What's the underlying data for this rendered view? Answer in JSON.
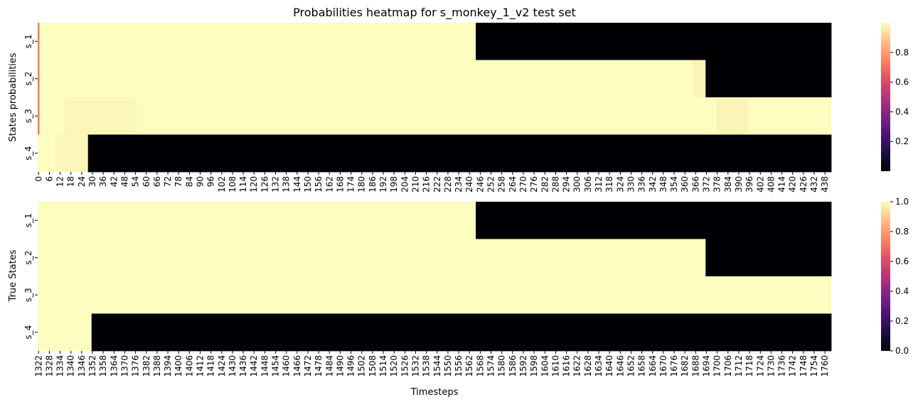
{
  "chart_data": [
    {
      "type": "heatmap",
      "title": "Probabilities heatmap for s_monkey_1_v2 test set",
      "xlabel": "",
      "ylabel": "States probabilities",
      "rows": [
        "s_1",
        "s_2",
        "s_3",
        "s_4"
      ],
      "xticks": [
        "0",
        "6",
        "12",
        "18",
        "24",
        "30",
        "36",
        "42",
        "48",
        "54",
        "60",
        "66",
        "72",
        "78",
        "84",
        "90",
        "96",
        "102",
        "108",
        "114",
        "120",
        "126",
        "132",
        "138",
        "144",
        "150",
        "156",
        "162",
        "168",
        "174",
        "180",
        "186",
        "192",
        "198",
        "204",
        "210",
        "216",
        "222",
        "228",
        "234",
        "240",
        "246",
        "252",
        "258",
        "264",
        "270",
        "276",
        "282",
        "288",
        "294",
        "300",
        "306",
        "312",
        "318",
        "324",
        "330",
        "336",
        "342",
        "348",
        "354",
        "360",
        "366",
        "372",
        "378",
        "384",
        "390",
        "396",
        "402",
        "408",
        "414",
        "420",
        "426",
        "432",
        "438"
      ],
      "n_timesteps": 442,
      "colormap": "magma",
      "colorbar": {
        "range": [
          0,
          1
        ],
        "ticks": [
          "0.2",
          "0.4",
          "0.6",
          "0.8"
        ]
      },
      "segments": [
        [
          {
            "from": 0,
            "to": 1,
            "value": 0.72
          },
          {
            "from": 1,
            "to": 244,
            "value": 1
          },
          {
            "from": 244,
            "to": 442,
            "value": 0
          }
        ],
        [
          {
            "from": 0,
            "to": 1,
            "value": 0.72
          },
          {
            "from": 1,
            "to": 365,
            "value": 1
          },
          {
            "from": 365,
            "to": 372,
            "value": 0.98
          },
          {
            "from": 372,
            "to": 442,
            "value": 0
          }
        ],
        [
          {
            "from": 0,
            "to": 1,
            "value": 0.72
          },
          {
            "from": 1,
            "to": 15,
            "value": 1
          },
          {
            "from": 15,
            "to": 55,
            "value": 0.985
          },
          {
            "from": 55,
            "to": 378,
            "value": 1
          },
          {
            "from": 378,
            "to": 396,
            "value": 0.98
          },
          {
            "from": 396,
            "to": 442,
            "value": 1
          }
        ],
        [
          {
            "from": 0,
            "to": 10,
            "value": 1
          },
          {
            "from": 10,
            "to": 28,
            "value": 0.985
          },
          {
            "from": 28,
            "to": 442,
            "value": 0
          }
        ]
      ]
    },
    {
      "type": "heatmap",
      "title": "",
      "xlabel": "Timesteps",
      "ylabel": "True States",
      "rows": [
        "s_1",
        "s_2",
        "s_3",
        "s_4"
      ],
      "xticks": [
        "1322",
        "1328",
        "1334",
        "1340",
        "1346",
        "1352",
        "1358",
        "1364",
        "1370",
        "1376",
        "1382",
        "1388",
        "1394",
        "1400",
        "1406",
        "1412",
        "1418",
        "1424",
        "1430",
        "1436",
        "1442",
        "1448",
        "1454",
        "1460",
        "1466",
        "1472",
        "1478",
        "1484",
        "1490",
        "1496",
        "1502",
        "1508",
        "1514",
        "1520",
        "1526",
        "1532",
        "1538",
        "1544",
        "1550",
        "1556",
        "1562",
        "1568",
        "1574",
        "1580",
        "1586",
        "1592",
        "1598",
        "1604",
        "1610",
        "1616",
        "1622",
        "1628",
        "1634",
        "1640",
        "1646",
        "1652",
        "1658",
        "1664",
        "1670",
        "1676",
        "1682",
        "1688",
        "1694",
        "1700",
        "1706",
        "1712",
        "1718",
        "1724",
        "1730",
        "1736",
        "1742",
        "1748",
        "1754",
        "1760"
      ],
      "n_timesteps": 442,
      "colormap": "magma",
      "colorbar": {
        "range": [
          0,
          1
        ],
        "ticks": [
          "0.0",
          "0.2",
          "0.4",
          "0.6",
          "0.8",
          "1.0"
        ]
      },
      "segments": [
        [
          {
            "from": 0,
            "to": 244,
            "value": 1
          },
          {
            "from": 244,
            "to": 442,
            "value": 0
          }
        ],
        [
          {
            "from": 0,
            "to": 372,
            "value": 1
          },
          {
            "from": 372,
            "to": 442,
            "value": 0
          }
        ],
        [
          {
            "from": 0,
            "to": 442,
            "value": 1
          }
        ],
        [
          {
            "from": 0,
            "to": 30,
            "value": 1
          },
          {
            "from": 30,
            "to": 442,
            "value": 0
          }
        ]
      ]
    }
  ]
}
